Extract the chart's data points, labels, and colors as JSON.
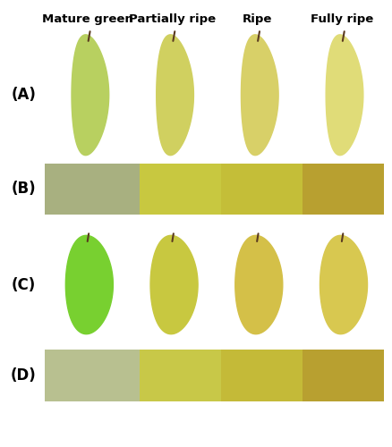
{
  "title_labels": [
    "Mature green",
    "Partially ripe",
    "Ripe",
    "Fully ripe"
  ],
  "panel_labels": [
    "(A)",
    "(B)",
    "(C)",
    "(D)"
  ],
  "background_color": "#ffffff",
  "dark_bg": "#111111",
  "B_colors": [
    "#a8b080",
    "#c8c840",
    "#c4be38",
    "#b8a030"
  ],
  "D_colors": [
    "#b8c090",
    "#c8c848",
    "#c4ba38",
    "#b8a030"
  ],
  "mango_A_colors": [
    "#b8d060",
    "#d0d060",
    "#d8d068",
    "#e0dc78"
  ],
  "mango_C_colors": [
    "#78d030",
    "#c8c840",
    "#d4c048",
    "#d8c850"
  ],
  "stem_color": "#5a3a20",
  "title_fontsize": 10,
  "label_fontsize": 12
}
